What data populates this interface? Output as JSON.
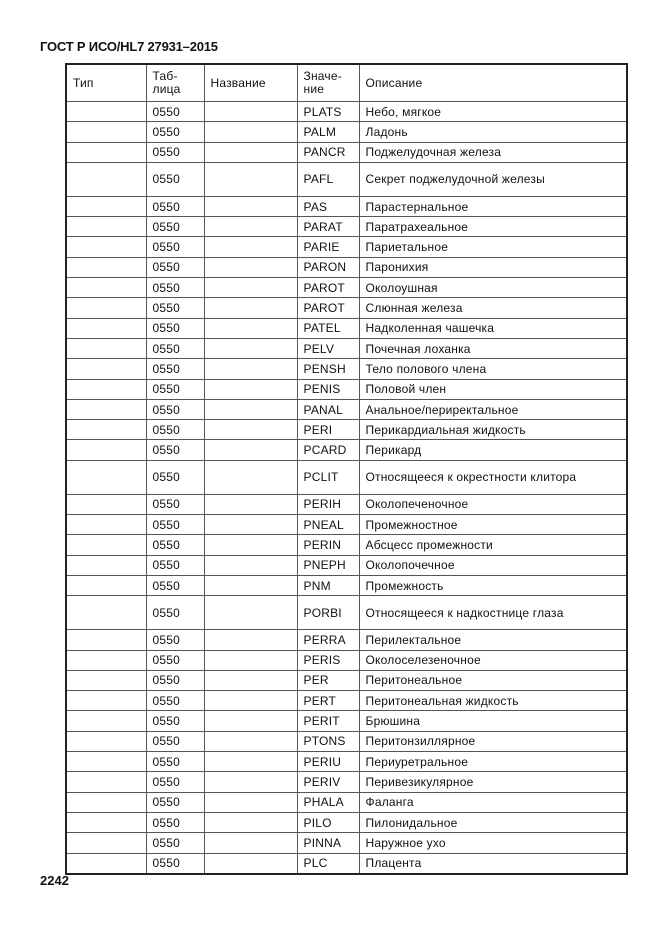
{
  "document": {
    "title": "ГОСТ Р ИСО/HL7 27931–2015",
    "page_number": "2242"
  },
  "table": {
    "headers": [
      "Тип",
      "Таб-\nлица",
      "Название",
      "Значе-\nние",
      "Описание"
    ],
    "rows": [
      {
        "type": "",
        "table": "0550",
        "name": "",
        "value": "PLATS",
        "description": "Небо, мягкое"
      },
      {
        "type": "",
        "table": "0550",
        "name": "",
        "value": "PALM",
        "description": "Ладонь"
      },
      {
        "type": "",
        "table": "0550",
        "name": "",
        "value": "PANCR",
        "description": "Поджелудочная железа"
      },
      {
        "type": "",
        "table": "0550",
        "name": "",
        "value": "PAFL",
        "description": "Секрет поджелудочной железы",
        "tall": true
      },
      {
        "type": "",
        "table": "0550",
        "name": "",
        "value": "PAS",
        "description": "Парастернальное"
      },
      {
        "type": "",
        "table": "0550",
        "name": "",
        "value": "PARAT",
        "description": "Паратрахеальное"
      },
      {
        "type": "",
        "table": "0550",
        "name": "",
        "value": "PARIE",
        "description": "Париетальное"
      },
      {
        "type": "",
        "table": "0550",
        "name": "",
        "value": "PARON",
        "description": "Паронихия"
      },
      {
        "type": "",
        "table": "0550",
        "name": "",
        "value": "PAROT",
        "description": "Околоушная"
      },
      {
        "type": "",
        "table": "0550",
        "name": "",
        "value": "PAROT",
        "description": "Слюнная железа"
      },
      {
        "type": "",
        "table": "0550",
        "name": "",
        "value": "PATEL",
        "description": "Надколенная чашечка"
      },
      {
        "type": "",
        "table": "0550",
        "name": "",
        "value": "PELV",
        "description": "Почечная лоханка"
      },
      {
        "type": "",
        "table": "0550",
        "name": "",
        "value": "PENSH",
        "description": "Тело полового члена"
      },
      {
        "type": "",
        "table": "0550",
        "name": "",
        "value": "PENIS",
        "description": "Половой член"
      },
      {
        "type": "",
        "table": "0550",
        "name": "",
        "value": "PANAL",
        "description": "Анальное/периректальное"
      },
      {
        "type": "",
        "table": "0550",
        "name": "",
        "value": "PERI",
        "description": "Перикардиальная жидкость"
      },
      {
        "type": "",
        "table": "0550",
        "name": "",
        "value": "PCARD",
        "description": "Перикард"
      },
      {
        "type": "",
        "table": "0550",
        "name": "",
        "value": "PCLIT",
        "description": "Относящееся к окрестности клитора",
        "tall": true
      },
      {
        "type": "",
        "table": "0550",
        "name": "",
        "value": "PERIH",
        "description": "Околопеченочное"
      },
      {
        "type": "",
        "table": "0550",
        "name": "",
        "value": "PNEAL",
        "description": "Промежностное"
      },
      {
        "type": "",
        "table": "0550",
        "name": "",
        "value": "PERIN",
        "description": "Абсцесс промежности"
      },
      {
        "type": "",
        "table": "0550",
        "name": "",
        "value": "PNEPH",
        "description": "Околопочечное"
      },
      {
        "type": "",
        "table": "0550",
        "name": "",
        "value": "PNM",
        "description": "Промежность"
      },
      {
        "type": "",
        "table": "0550",
        "name": "",
        "value": "PORBI",
        "description": "Относящееся к надкостнице глаза",
        "tall": true
      },
      {
        "type": "",
        "table": "0550",
        "name": "",
        "value": "PERRA",
        "description": "Перилектальное"
      },
      {
        "type": "",
        "table": "0550",
        "name": "",
        "value": "PERIS",
        "description": "Околоселезеночное"
      },
      {
        "type": "",
        "table": "0550",
        "name": "",
        "value": "PER",
        "description": "Перитонеальное"
      },
      {
        "type": "",
        "table": "0550",
        "name": "",
        "value": "PERT",
        "description": "Перитонеальная жидкость"
      },
      {
        "type": "",
        "table": "0550",
        "name": "",
        "value": "PERIT",
        "description": "Брюшина"
      },
      {
        "type": "",
        "table": "0550",
        "name": "",
        "value": "PTONS",
        "description": "Перитонзиллярное"
      },
      {
        "type": "",
        "table": "0550",
        "name": "",
        "value": "PERIU",
        "description": "Периуретральное"
      },
      {
        "type": "",
        "table": "0550",
        "name": "",
        "value": "PERIV",
        "description": "Перивезикулярное"
      },
      {
        "type": "",
        "table": "0550",
        "name": "",
        "value": "PHALA",
        "description": "Фаланга"
      },
      {
        "type": "",
        "table": "0550",
        "name": "",
        "value": "PILO",
        "description": "Пилонидальное"
      },
      {
        "type": "",
        "table": "0550",
        "name": "",
        "value": "PINNA",
        "description": "Наружное ухо"
      },
      {
        "type": "",
        "table": "0550",
        "name": "",
        "value": "PLC",
        "description": "Плацента"
      }
    ]
  }
}
